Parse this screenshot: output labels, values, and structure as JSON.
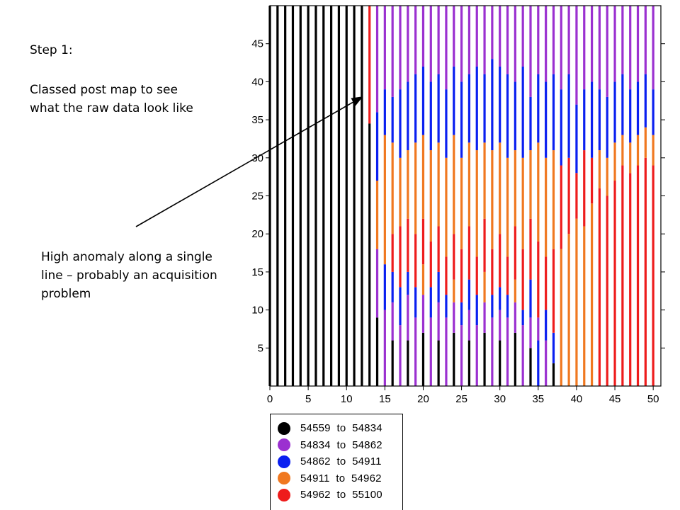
{
  "annotations": {
    "step_title": "Step 1:",
    "step_description": "Classed post map to see what the raw data look like",
    "anomaly_note": "High anomaly along a single line – probably an acquisition problem"
  },
  "chart_data": {
    "type": "scatter",
    "title": "",
    "xlabel": "",
    "ylabel": "",
    "xlim": [
      0,
      51
    ],
    "ylim": [
      0,
      50
    ],
    "x_ticks": [
      0,
      5,
      10,
      15,
      20,
      25,
      30,
      35,
      40,
      45,
      50
    ],
    "y_ticks": [
      5,
      10,
      15,
      20,
      25,
      30,
      35,
      40,
      45
    ],
    "grid": false,
    "legend_position": "below",
    "lines_x": [
      0,
      1,
      2,
      3,
      4,
      5,
      6,
      7,
      8,
      9,
      10,
      11,
      12,
      13,
      14,
      15,
      16,
      17,
      18,
      19,
      20,
      21,
      22,
      23,
      24,
      25,
      26,
      27,
      28,
      29,
      30,
      31,
      32,
      33,
      34,
      35,
      36,
      37,
      38,
      39,
      40,
      41,
      42,
      43,
      44,
      45,
      46,
      47,
      48,
      49,
      50
    ],
    "classes": [
      {
        "label": "54559  to  54834",
        "color": "#000000"
      },
      {
        "label": "54834  to  54862",
        "color": "#9b30d0"
      },
      {
        "label": "54862  to  54911",
        "color": "#0a1ff0"
      },
      {
        "label": "54911  to  54962",
        "color": "#f07820"
      },
      {
        "label": "54962  to  55100",
        "color": "#ee1c1c"
      }
    ],
    "profiles": [
      [
        [
          0,
          50,
          0
        ]
      ],
      [
        [
          0,
          50,
          0
        ]
      ],
      [
        [
          0,
          50,
          0
        ]
      ],
      [
        [
          0,
          50,
          0
        ]
      ],
      [
        [
          0,
          50,
          0
        ]
      ],
      [
        [
          0,
          50,
          0
        ]
      ],
      [
        [
          0,
          50,
          0
        ]
      ],
      [
        [
          0,
          50,
          0
        ]
      ],
      [
        [
          0,
          50,
          0
        ]
      ],
      [
        [
          0,
          50,
          0
        ]
      ],
      [
        [
          0,
          50,
          0
        ]
      ],
      [
        [
          0,
          50,
          0
        ]
      ],
      [
        [
          0,
          50,
          0
        ]
      ],
      [
        [
          0,
          34.5,
          0
        ],
        [
          34.5,
          50,
          4
        ]
      ],
      [
        [
          0,
          9,
          0
        ],
        [
          9,
          18,
          1
        ],
        [
          18,
          27,
          3
        ],
        [
          27,
          36,
          2
        ],
        [
          36,
          50,
          1
        ]
      ],
      [
        [
          0,
          10,
          1
        ],
        [
          10,
          16,
          2
        ],
        [
          16,
          33,
          3
        ],
        [
          33,
          39,
          2
        ],
        [
          39,
          50,
          1
        ]
      ],
      [
        [
          0,
          6,
          0
        ],
        [
          6,
          11,
          1
        ],
        [
          11,
          15,
          2
        ],
        [
          15,
          20,
          4
        ],
        [
          20,
          32,
          3
        ],
        [
          32,
          38,
          2
        ],
        [
          38,
          50,
          1
        ]
      ],
      [
        [
          0,
          8,
          1
        ],
        [
          8,
          13,
          2
        ],
        [
          13,
          21,
          4
        ],
        [
          21,
          30,
          3
        ],
        [
          30,
          39,
          2
        ],
        [
          39,
          50,
          1
        ]
      ],
      [
        [
          0,
          6,
          0
        ],
        [
          6,
          12,
          1
        ],
        [
          12,
          15,
          2
        ],
        [
          15,
          22,
          4
        ],
        [
          22,
          31,
          3
        ],
        [
          31,
          40,
          2
        ],
        [
          40,
          50,
          1
        ]
      ],
      [
        [
          0,
          9,
          1
        ],
        [
          9,
          13,
          2
        ],
        [
          13,
          20,
          4
        ],
        [
          20,
          32,
          3
        ],
        [
          32,
          41,
          2
        ],
        [
          41,
          50,
          1
        ]
      ],
      [
        [
          0,
          7,
          0
        ],
        [
          7,
          12,
          1
        ],
        [
          12,
          16,
          3
        ],
        [
          16,
          22,
          4
        ],
        [
          22,
          33,
          3
        ],
        [
          33,
          42,
          2
        ],
        [
          42,
          50,
          1
        ]
      ],
      [
        [
          0,
          9,
          1
        ],
        [
          9,
          13,
          2
        ],
        [
          13,
          19,
          4
        ],
        [
          19,
          31,
          3
        ],
        [
          31,
          40,
          2
        ],
        [
          40,
          50,
          1
        ]
      ],
      [
        [
          0,
          6,
          0
        ],
        [
          6,
          11,
          1
        ],
        [
          11,
          15,
          2
        ],
        [
          15,
          21,
          4
        ],
        [
          21,
          32,
          3
        ],
        [
          32,
          41,
          2
        ],
        [
          41,
          50,
          1
        ]
      ],
      [
        [
          0,
          9,
          1
        ],
        [
          9,
          12,
          2
        ],
        [
          12,
          17,
          4
        ],
        [
          17,
          30,
          3
        ],
        [
          30,
          39,
          2
        ],
        [
          39,
          50,
          1
        ]
      ],
      [
        [
          0,
          7,
          0
        ],
        [
          7,
          11,
          1
        ],
        [
          11,
          14,
          3
        ],
        [
          14,
          20,
          4
        ],
        [
          20,
          33,
          3
        ],
        [
          33,
          42,
          2
        ],
        [
          42,
          50,
          1
        ]
      ],
      [
        [
          0,
          8,
          1
        ],
        [
          8,
          11,
          2
        ],
        [
          11,
          18,
          4
        ],
        [
          18,
          30,
          3
        ],
        [
          30,
          40,
          2
        ],
        [
          40,
          50,
          1
        ]
      ],
      [
        [
          0,
          6,
          0
        ],
        [
          6,
          10,
          1
        ],
        [
          10,
          14,
          2
        ],
        [
          14,
          21,
          4
        ],
        [
          21,
          32,
          3
        ],
        [
          32,
          41,
          2
        ],
        [
          41,
          50,
          1
        ]
      ],
      [
        [
          0,
          8,
          1
        ],
        [
          8,
          12,
          2
        ],
        [
          12,
          17,
          4
        ],
        [
          17,
          31,
          3
        ],
        [
          31,
          42,
          2
        ],
        [
          42,
          50,
          1
        ]
      ],
      [
        [
          0,
          7,
          0
        ],
        [
          7,
          11,
          1
        ],
        [
          11,
          15,
          3
        ],
        [
          15,
          22,
          4
        ],
        [
          22,
          32,
          3
        ],
        [
          32,
          41,
          2
        ],
        [
          41,
          50,
          1
        ]
      ],
      [
        [
          0,
          9,
          1
        ],
        [
          9,
          12,
          2
        ],
        [
          12,
          18,
          4
        ],
        [
          18,
          31,
          3
        ],
        [
          31,
          43,
          2
        ],
        [
          43,
          50,
          1
        ]
      ],
      [
        [
          0,
          6,
          0
        ],
        [
          6,
          10,
          1
        ],
        [
          10,
          13,
          2
        ],
        [
          13,
          20,
          4
        ],
        [
          20,
          32,
          3
        ],
        [
          32,
          42,
          2
        ],
        [
          42,
          50,
          1
        ]
      ],
      [
        [
          0,
          9,
          1
        ],
        [
          9,
          12,
          2
        ],
        [
          12,
          17,
          4
        ],
        [
          17,
          30,
          3
        ],
        [
          30,
          41,
          2
        ],
        [
          41,
          50,
          1
        ]
      ],
      [
        [
          0,
          7,
          0
        ],
        [
          7,
          11,
          1
        ],
        [
          11,
          14,
          3
        ],
        [
          14,
          21,
          4
        ],
        [
          21,
          31,
          3
        ],
        [
          31,
          40,
          2
        ],
        [
          40,
          50,
          1
        ]
      ],
      [
        [
          0,
          8,
          1
        ],
        [
          8,
          10,
          2
        ],
        [
          10,
          18,
          4
        ],
        [
          18,
          30,
          3
        ],
        [
          30,
          42,
          2
        ],
        [
          42,
          50,
          1
        ]
      ],
      [
        [
          0,
          5,
          0
        ],
        [
          5,
          9,
          1
        ],
        [
          9,
          14,
          2
        ],
        [
          14,
          22,
          4
        ],
        [
          22,
          31,
          3
        ],
        [
          31,
          38,
          2
        ],
        [
          38,
          50,
          1
        ]
      ],
      [
        [
          0,
          6,
          2
        ],
        [
          6,
          9,
          1
        ],
        [
          9,
          19,
          4
        ],
        [
          19,
          32,
          3
        ],
        [
          32,
          41,
          2
        ],
        [
          41,
          50,
          1
        ]
      ],
      [
        [
          0,
          6,
          1
        ],
        [
          6,
          10,
          2
        ],
        [
          10,
          17,
          4
        ],
        [
          17,
          30,
          3
        ],
        [
          30,
          40,
          2
        ],
        [
          40,
          50,
          1
        ]
      ],
      [
        [
          0,
          3,
          0
        ],
        [
          3,
          7,
          2
        ],
        [
          7,
          18,
          4
        ],
        [
          18,
          31,
          3
        ],
        [
          31,
          41,
          2
        ],
        [
          41,
          50,
          1
        ]
      ],
      [
        [
          0,
          18,
          3
        ],
        [
          18,
          29,
          4
        ],
        [
          29,
          39,
          2
        ],
        [
          39,
          50,
          1
        ]
      ],
      [
        [
          0,
          20,
          3
        ],
        [
          20,
          30,
          4
        ],
        [
          30,
          41,
          2
        ],
        [
          41,
          50,
          1
        ]
      ],
      [
        [
          0,
          22,
          3
        ],
        [
          22,
          28,
          4
        ],
        [
          28,
          37,
          2
        ],
        [
          37,
          50,
          1
        ]
      ],
      [
        [
          0,
          21,
          3
        ],
        [
          21,
          31,
          4
        ],
        [
          31,
          39,
          2
        ],
        [
          39,
          50,
          1
        ]
      ],
      [
        [
          0,
          24,
          3
        ],
        [
          24,
          30,
          4
        ],
        [
          30,
          40,
          2
        ],
        [
          40,
          50,
          1
        ]
      ],
      [
        [
          0,
          26,
          4
        ],
        [
          26,
          31,
          3
        ],
        [
          31,
          39,
          2
        ],
        [
          39,
          50,
          1
        ]
      ],
      [
        [
          0,
          25,
          4
        ],
        [
          25,
          30,
          3
        ],
        [
          30,
          38,
          2
        ],
        [
          38,
          50,
          1
        ]
      ],
      [
        [
          0,
          27,
          4
        ],
        [
          27,
          32,
          3
        ],
        [
          32,
          40,
          2
        ],
        [
          40,
          50,
          1
        ]
      ],
      [
        [
          0,
          29,
          4
        ],
        [
          29,
          33,
          3
        ],
        [
          33,
          41,
          2
        ],
        [
          41,
          50,
          1
        ]
      ],
      [
        [
          0,
          28,
          4
        ],
        [
          28,
          32,
          3
        ],
        [
          32,
          39,
          2
        ],
        [
          39,
          50,
          1
        ]
      ],
      [
        [
          0,
          29,
          4
        ],
        [
          29,
          33,
          3
        ],
        [
          33,
          40,
          2
        ],
        [
          40,
          50,
          1
        ]
      ],
      [
        [
          0,
          30,
          4
        ],
        [
          30,
          34,
          3
        ],
        [
          34,
          41,
          2
        ],
        [
          41,
          50,
          1
        ]
      ],
      [
        [
          0,
          29,
          4
        ],
        [
          29,
          33,
          3
        ],
        [
          33,
          39,
          2
        ],
        [
          39,
          50,
          1
        ]
      ]
    ]
  }
}
